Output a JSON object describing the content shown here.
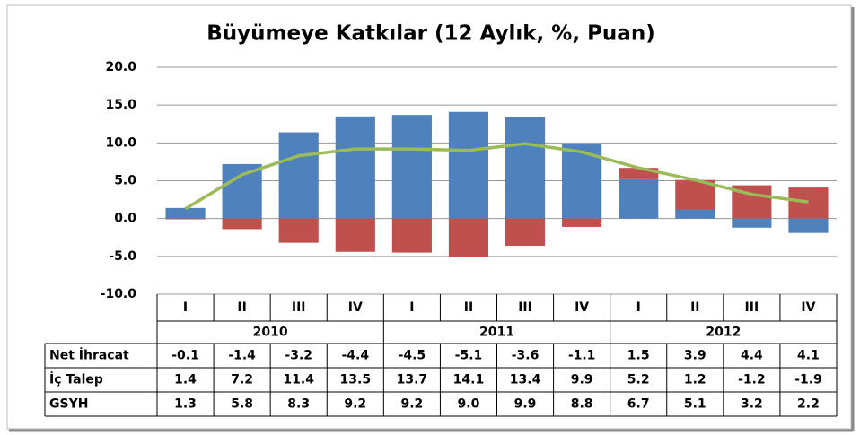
{
  "chart_data": {
    "type": "bar",
    "title": "Büyümeye Katkılar (12 Aylık, %, Puan)",
    "categories": [
      "I",
      "II",
      "III",
      "IV",
      "I",
      "II",
      "III",
      "IV",
      "I",
      "II",
      "III",
      "IV"
    ],
    "years": [
      "2010",
      "2011",
      "2012"
    ],
    "stacked": true,
    "grid": true,
    "ylim": [
      -10,
      20
    ],
    "yticks": [
      {
        "value": -10,
        "label": "-10.0"
      },
      {
        "value": -5,
        "label": "-5.0"
      },
      {
        "value": 0,
        "label": "0.0"
      },
      {
        "value": 5,
        "label": "5.0"
      },
      {
        "value": 10,
        "label": "10.0"
      },
      {
        "value": 15,
        "label": "15.0"
      },
      {
        "value": 20,
        "label": "20.0"
      }
    ],
    "series": [
      {
        "name": "Net İhracat",
        "type": "bar",
        "color": "#c0504d",
        "values": [
          -0.1,
          -1.4,
          -3.2,
          -4.4,
          -4.5,
          -5.1,
          -3.6,
          -1.1,
          1.5,
          3.9,
          4.4,
          4.1
        ],
        "value_labels": [
          "-0.1",
          "-1.4",
          "-3.2",
          "-4.4",
          "-4.5",
          "-5.1",
          "-3.6",
          "-1.1",
          "1.5",
          "3.9",
          "4.4",
          "4.1"
        ]
      },
      {
        "name": "İç Talep",
        "type": "bar",
        "color": "#4f81bd",
        "values": [
          1.4,
          7.2,
          11.4,
          13.5,
          13.7,
          14.1,
          13.4,
          9.9,
          5.2,
          1.2,
          -1.2,
          -1.9
        ],
        "value_labels": [
          "1.4",
          "7.2",
          "11.4",
          "13.5",
          "13.7",
          "14.1",
          "13.4",
          "9.9",
          "5.2",
          "1.2",
          "-1.2",
          "-1.9"
        ]
      },
      {
        "name": "GSYH",
        "type": "line",
        "color": "#9bbb59",
        "values": [
          1.3,
          5.8,
          8.3,
          9.2,
          9.2,
          9.0,
          9.9,
          8.8,
          6.7,
          5.1,
          3.2,
          2.2
        ],
        "value_labels": [
          "1.3",
          "5.8",
          "8.3",
          "9.2",
          "9.2",
          "9.0",
          "9.9",
          "8.8",
          "6.7",
          "5.1",
          "3.2",
          "2.2"
        ]
      }
    ]
  }
}
